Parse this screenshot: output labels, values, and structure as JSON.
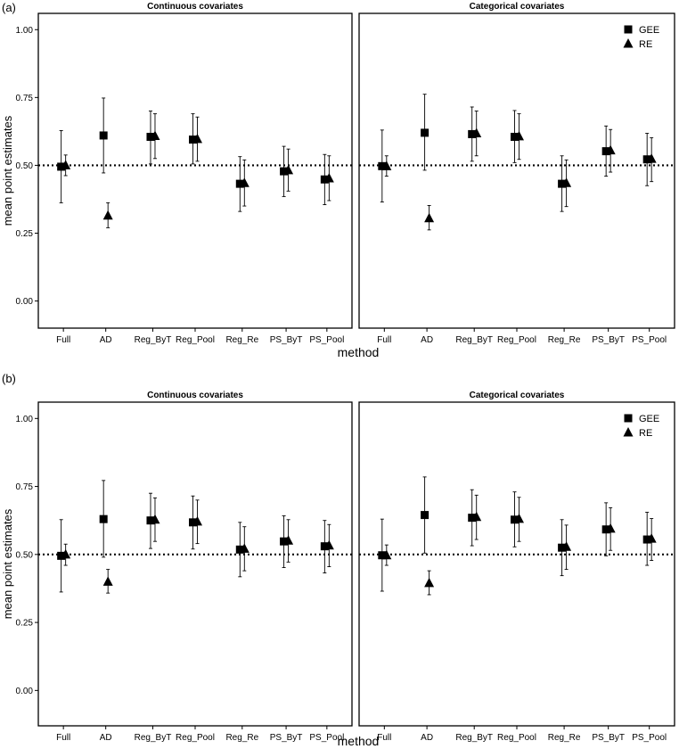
{
  "figure": {
    "panel_labels": [
      "(a)",
      "(b)"
    ],
    "facet_titles": [
      "Continuous covariates",
      "Categorical covariates"
    ],
    "xlabel": "method",
    "ylabel": "mean point estimates",
    "reference_line": 0.5,
    "legend": [
      {
        "name": "GEE",
        "shape": "square"
      },
      {
        "name": "RE",
        "shape": "triangle"
      }
    ],
    "colors": {
      "marks": "#000000",
      "reference_line": "#000000",
      "frame": "#000000",
      "background": "#ffffff"
    }
  },
  "chart_data": [
    {
      "type": "scatter",
      "panel": "(a)",
      "facet": "Continuous covariates",
      "categories": [
        "Full",
        "AD",
        "Reg_ByT",
        "Reg_Pool",
        "Reg_Re",
        "PS_ByT",
        "PS_Pool"
      ],
      "ylim": [
        -0.1,
        1.06
      ],
      "yticks": [
        "1.00",
        "0.75",
        "0.50",
        "0.25",
        "0.00"
      ],
      "xlabel": "method",
      "ylabel": "mean point estimates",
      "grid": false,
      "series": [
        {
          "name": "GEE",
          "values": [
            0.495,
            0.61,
            0.605,
            0.595,
            0.432,
            0.478,
            0.448
          ],
          "lower": [
            0.362,
            0.472,
            0.505,
            0.505,
            0.33,
            0.385,
            0.355
          ],
          "upper": [
            0.628,
            0.748,
            0.7,
            0.69,
            0.532,
            0.57,
            0.54
          ]
        },
        {
          "name": "RE",
          "values": [
            0.5,
            0.315,
            0.608,
            0.597,
            0.435,
            0.482,
            0.452
          ],
          "lower": [
            0.462,
            0.27,
            0.525,
            0.515,
            0.35,
            0.405,
            0.37
          ],
          "upper": [
            0.538,
            0.362,
            0.69,
            0.678,
            0.52,
            0.56,
            0.535
          ]
        }
      ]
    },
    {
      "type": "scatter",
      "panel": "(a)",
      "facet": "Categorical covariates",
      "categories": [
        "Full",
        "AD",
        "Reg_ByT",
        "Reg_Pool",
        "Reg_Re",
        "PS_ByT",
        "PS_Pool"
      ],
      "ylim": [
        -0.1,
        1.06
      ],
      "series": [
        {
          "name": "GEE",
          "values": [
            0.497,
            0.62,
            0.615,
            0.605,
            0.432,
            0.552,
            0.522
          ],
          "lower": [
            0.365,
            0.482,
            0.515,
            0.51,
            0.33,
            0.46,
            0.425
          ],
          "upper": [
            0.63,
            0.762,
            0.715,
            0.702,
            0.535,
            0.645,
            0.618
          ]
        },
        {
          "name": "RE",
          "values": [
            0.497,
            0.305,
            0.618,
            0.607,
            0.435,
            0.555,
            0.524
          ],
          "lower": [
            0.46,
            0.262,
            0.535,
            0.522,
            0.348,
            0.475,
            0.44
          ],
          "upper": [
            0.535,
            0.352,
            0.7,
            0.69,
            0.52,
            0.632,
            0.602
          ]
        }
      ]
    },
    {
      "type": "scatter",
      "panel": "(b)",
      "facet": "Continuous covariates",
      "categories": [
        "Full",
        "AD",
        "Reg_ByT",
        "Reg_Pool",
        "Reg_Re",
        "PS_ByT",
        "PS_Pool"
      ],
      "ylim": [
        -0.13,
        1.06
      ],
      "series": [
        {
          "name": "GEE",
          "values": [
            0.495,
            0.63,
            0.625,
            0.618,
            0.518,
            0.548,
            0.53
          ],
          "lower": [
            0.362,
            0.49,
            0.522,
            0.52,
            0.418,
            0.452,
            0.432
          ],
          "upper": [
            0.628,
            0.772,
            0.725,
            0.715,
            0.618,
            0.642,
            0.625
          ]
        },
        {
          "name": "RE",
          "values": [
            0.5,
            0.4,
            0.628,
            0.621,
            0.521,
            0.551,
            0.533
          ],
          "lower": [
            0.46,
            0.358,
            0.548,
            0.54,
            0.44,
            0.472,
            0.455
          ],
          "upper": [
            0.538,
            0.445,
            0.708,
            0.7,
            0.602,
            0.628,
            0.61
          ]
        }
      ]
    },
    {
      "type": "scatter",
      "panel": "(b)",
      "facet": "Categorical covariates",
      "categories": [
        "Full",
        "AD",
        "Reg_ByT",
        "Reg_Pool",
        "Reg_Re",
        "PS_ByT",
        "PS_Pool"
      ],
      "ylim": [
        -0.13,
        1.06
      ],
      "series": [
        {
          "name": "GEE",
          "values": [
            0.497,
            0.645,
            0.635,
            0.628,
            0.525,
            0.592,
            0.555
          ],
          "lower": [
            0.365,
            0.505,
            0.532,
            0.528,
            0.422,
            0.495,
            0.46
          ],
          "upper": [
            0.63,
            0.785,
            0.738,
            0.73,
            0.628,
            0.69,
            0.655
          ]
        },
        {
          "name": "RE",
          "values": [
            0.497,
            0.395,
            0.638,
            0.631,
            0.528,
            0.595,
            0.558
          ],
          "lower": [
            0.46,
            0.352,
            0.555,
            0.548,
            0.445,
            0.515,
            0.478
          ],
          "upper": [
            0.535,
            0.44,
            0.718,
            0.71,
            0.608,
            0.672,
            0.632
          ]
        }
      ]
    }
  ]
}
